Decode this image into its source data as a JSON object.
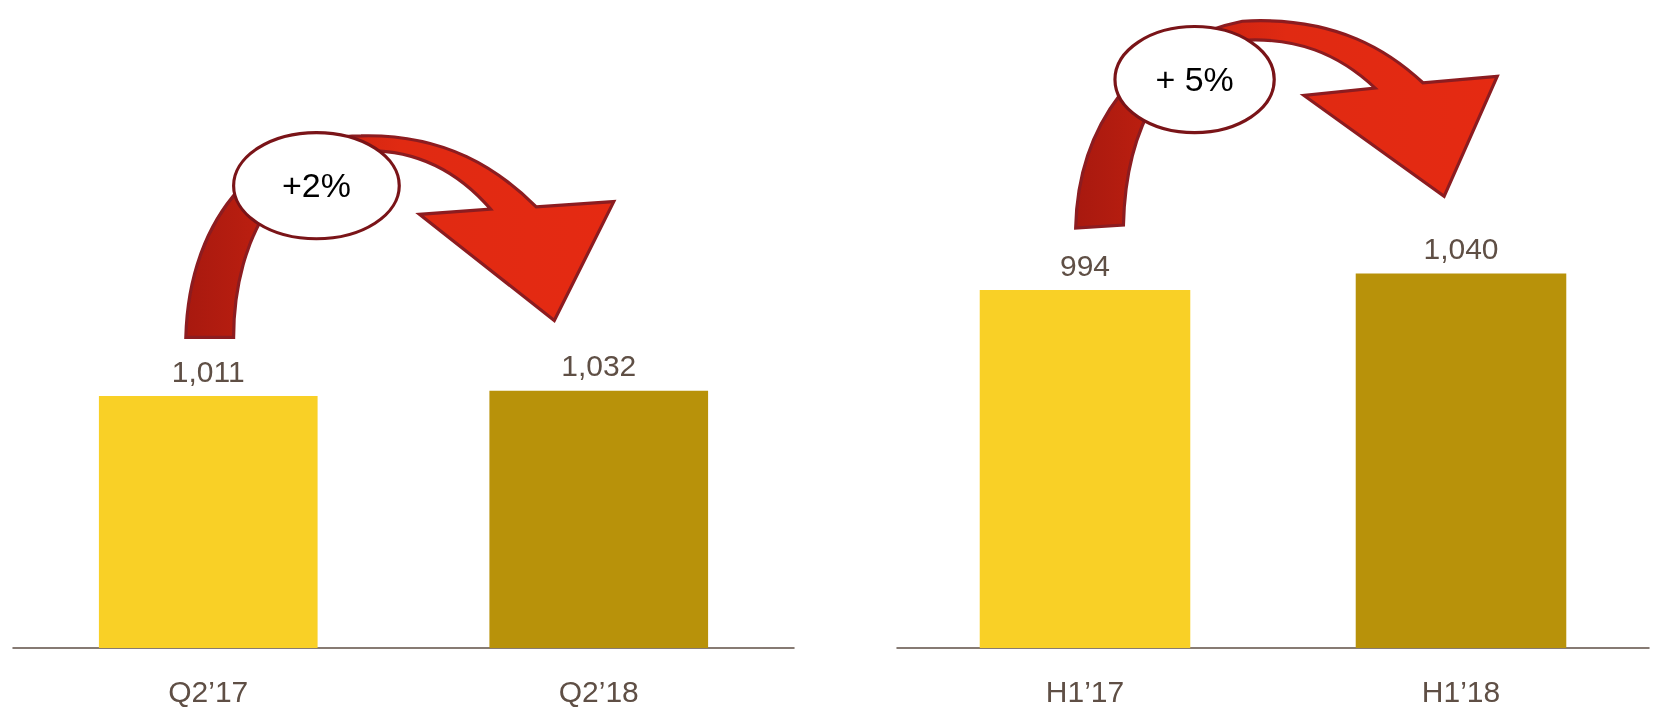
{
  "chart_data": [
    {
      "type": "bar",
      "categories": [
        "Q2’17",
        "Q2’18"
      ],
      "values": [
        1011,
        1032
      ],
      "value_labels": [
        "1,011",
        "1,032"
      ],
      "colors": [
        "#f9d026",
        "#b8920a"
      ],
      "tick_labels": "x",
      "annotations": [
        "+2%"
      ]
    },
    {
      "type": "bar",
      "categories": [
        "H1’17",
        "H1’18"
      ],
      "values": [
        994,
        1040
      ],
      "value_labels": [
        "994",
        "1,040"
      ],
      "colors": [
        "#f9d026",
        "#b8920a"
      ],
      "tick_labels": "x",
      "annotations": [
        "+ 5%"
      ]
    }
  ]
}
